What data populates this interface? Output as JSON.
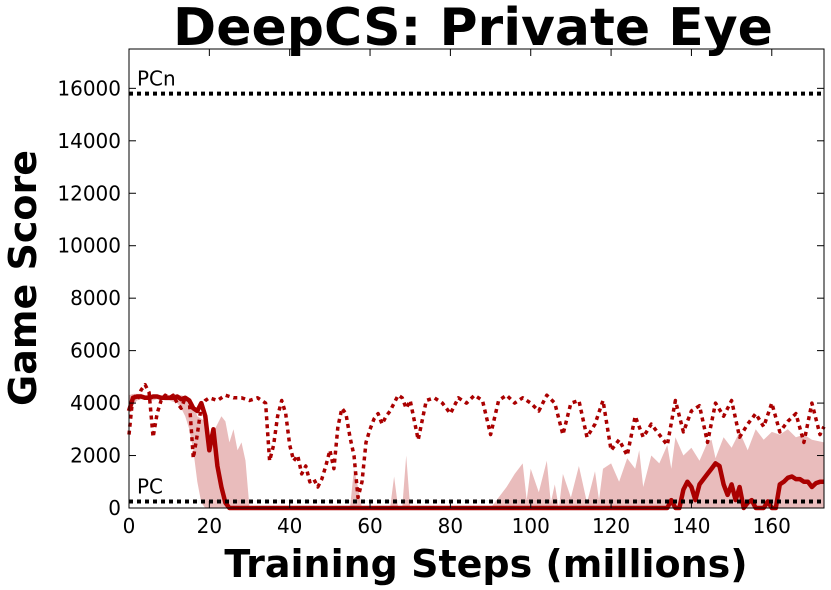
{
  "chart_data": {
    "type": "line",
    "title": "DeepCS: Private Eye",
    "xlabel": "Training Steps (millions)",
    "ylabel": "Game Score",
    "xlim": [
      0,
      173
    ],
    "ylim": [
      0,
      17500
    ],
    "xticks": [
      0,
      20,
      40,
      60,
      80,
      100,
      120,
      140,
      160
    ],
    "yticks": [
      0,
      2000,
      4000,
      6000,
      8000,
      10000,
      12000,
      14000,
      16000
    ],
    "grid": false,
    "colors": {
      "mean_line": "#aa0000",
      "max_line": "#aa0000",
      "band_fill": "#e9bcbc",
      "reference": "#000000"
    },
    "reference_lines": [
      {
        "label": "PCn",
        "y": 15800
      },
      {
        "label": "PC",
        "y": 250
      }
    ],
    "band": {
      "x": [
        0,
        1,
        2,
        3,
        4,
        5,
        6,
        7,
        8,
        9,
        10,
        11,
        12,
        13,
        14,
        15,
        16,
        17,
        18,
        19,
        20,
        21,
        22,
        23,
        24,
        25,
        26,
        27,
        28,
        29,
        30,
        35,
        40,
        45,
        50,
        55,
        56,
        57,
        58,
        59,
        60,
        65,
        66,
        67,
        68,
        69,
        70,
        75,
        80,
        85,
        90,
        92,
        94,
        96,
        98,
        99,
        100,
        102,
        104,
        105,
        106,
        107,
        108,
        110,
        112,
        114,
        116,
        117,
        118,
        120,
        122,
        124,
        126,
        127,
        128,
        130,
        132,
        134,
        135,
        136,
        138,
        140,
        142,
        144,
        145,
        146,
        148,
        150,
        152,
        154,
        156,
        158,
        160,
        162,
        164,
        166,
        168,
        170,
        173
      ],
      "lower": [
        3600,
        3900,
        4100,
        4150,
        4150,
        4150,
        4100,
        4150,
        4150,
        4100,
        4100,
        4050,
        4000,
        3800,
        3500,
        3000,
        2200,
        1000,
        200,
        0,
        0,
        0,
        0,
        0,
        0,
        0,
        0,
        0,
        0,
        0,
        0,
        0,
        0,
        0,
        0,
        0,
        0,
        0,
        0,
        0,
        0,
        0,
        0,
        0,
        0,
        0,
        0,
        0,
        0,
        0,
        0,
        0,
        0,
        0,
        0,
        0,
        0,
        0,
        0,
        0,
        0,
        0,
        0,
        0,
        0,
        0,
        0,
        0,
        0,
        0,
        0,
        0,
        0,
        0,
        0,
        0,
        0,
        0,
        0,
        0,
        0,
        0,
        0,
        0,
        0,
        0,
        0,
        0,
        0,
        0,
        0,
        0,
        0,
        0,
        0,
        0,
        0,
        0,
        0
      ],
      "upper": [
        4300,
        4350,
        4350,
        4350,
        4300,
        4300,
        4300,
        4300,
        4250,
        4300,
        4300,
        4300,
        4300,
        4300,
        4250,
        4200,
        4000,
        3500,
        3400,
        3300,
        2800,
        2900,
        3200,
        3500,
        3300,
        2500,
        3000,
        2200,
        2500,
        1800,
        0,
        0,
        0,
        0,
        0,
        0,
        1500,
        800,
        0,
        0,
        0,
        0,
        1200,
        0,
        0,
        2000,
        0,
        0,
        0,
        0,
        0,
        400,
        800,
        1300,
        1700,
        300,
        1500,
        600,
        1800,
        200,
        900,
        0,
        1300,
        400,
        1600,
        200,
        1400,
        300,
        1500,
        1700,
        1000,
        1900,
        1500,
        2200,
        800,
        2000,
        1700,
        2400,
        1500,
        2700,
        2000,
        2300,
        1800,
        2500,
        2600,
        1900,
        2700,
        2300,
        2900,
        2200,
        3000,
        2600,
        2900,
        2800,
        3000,
        2700,
        2800,
        2600,
        2500
      ]
    },
    "series": [
      {
        "style": "solid",
        "x": [
          0,
          1,
          2,
          3,
          4,
          5,
          6,
          7,
          8,
          9,
          10,
          11,
          12,
          13,
          14,
          15,
          16,
          17,
          18,
          19,
          20,
          21,
          22,
          23,
          24,
          25,
          28,
          30,
          40,
          50,
          60,
          70,
          80,
          90,
          100,
          110,
          120,
          130,
          134,
          135,
          136,
          137,
          138,
          139,
          140,
          141,
          142,
          143,
          144,
          145,
          146,
          147,
          148,
          149,
          150,
          151,
          152,
          153,
          154,
          155,
          156,
          157,
          158,
          159,
          160,
          161,
          162,
          163,
          164,
          165,
          166,
          167,
          168,
          169,
          170,
          171,
          172,
          173
        ],
        "y": [
          3700,
          4200,
          4250,
          4250,
          4200,
          4200,
          4250,
          4250,
          4200,
          4200,
          4200,
          4200,
          4250,
          4150,
          4200,
          4100,
          3800,
          3700,
          4000,
          3500,
          2200,
          3000,
          1600,
          800,
          200,
          0,
          0,
          0,
          0,
          0,
          0,
          0,
          0,
          0,
          0,
          0,
          0,
          0,
          0,
          300,
          0,
          0,
          700,
          1000,
          800,
          300,
          900,
          1100,
          1300,
          1500,
          1700,
          1600,
          900,
          500,
          900,
          300,
          800,
          0,
          200,
          300,
          0,
          0,
          0,
          250,
          0,
          0,
          900,
          1000,
          1150,
          1200,
          1100,
          1100,
          1000,
          1000,
          800,
          950,
          1000,
          1000
        ]
      },
      {
        "style": "dotted",
        "x": [
          0,
          1,
          2,
          3,
          4,
          5,
          6,
          7,
          8,
          9,
          10,
          11,
          12,
          13,
          14,
          15,
          16,
          17,
          18,
          19,
          20,
          22,
          24,
          26,
          28,
          30,
          32,
          34,
          35,
          36,
          37,
          38,
          39,
          40,
          41,
          42,
          43,
          44,
          45,
          46,
          47,
          48,
          49,
          50,
          51,
          52,
          53,
          54,
          55,
          56,
          57,
          58,
          59,
          60,
          61,
          62,
          63,
          64,
          65,
          66,
          67,
          68,
          69,
          70,
          72,
          74,
          76,
          78,
          80,
          82,
          84,
          86,
          88,
          90,
          92,
          94,
          96,
          98,
          100,
          102,
          104,
          106,
          108,
          110,
          112,
          114,
          116,
          118,
          120,
          122,
          124,
          126,
          128,
          130,
          132,
          134,
          136,
          138,
          140,
          142,
          144,
          146,
          148,
          150,
          152,
          154,
          156,
          158,
          160,
          162,
          164,
          166,
          168,
          170,
          172,
          173
        ],
        "y": [
          2800,
          4300,
          4100,
          4500,
          4700,
          4400,
          2700,
          3600,
          4100,
          4300,
          4200,
          4300,
          4000,
          3800,
          4200,
          4100,
          1900,
          2800,
          3900,
          4100,
          4200,
          4100,
          4300,
          4200,
          4200,
          4100,
          4200,
          4000,
          1800,
          2400,
          3500,
          4100,
          3600,
          2400,
          1800,
          2000,
          1300,
          1600,
          1000,
          1100,
          800,
          1100,
          1600,
          2200,
          1500,
          3100,
          3800,
          3600,
          2700,
          2000,
          400,
          1000,
          2500,
          3000,
          3400,
          3600,
          3200,
          3500,
          3700,
          4000,
          4300,
          4200,
          3800,
          4100,
          2600,
          4100,
          4200,
          4000,
          3600,
          4200,
          4000,
          4300,
          4100,
          2800,
          4100,
          4300,
          4000,
          4200,
          4000,
          3700,
          4300,
          4000,
          2800,
          4000,
          4100,
          2700,
          3200,
          4100,
          2200,
          2600,
          2000,
          3500,
          2700,
          3200,
          2800,
          2400,
          4100,
          2900,
          3700,
          3900,
          2500,
          4000,
          3500,
          4100,
          2700,
          3200,
          3600,
          3100,
          4000,
          2900,
          3300,
          3600,
          2500,
          4000,
          2800,
          3100
        ]
      }
    ]
  }
}
